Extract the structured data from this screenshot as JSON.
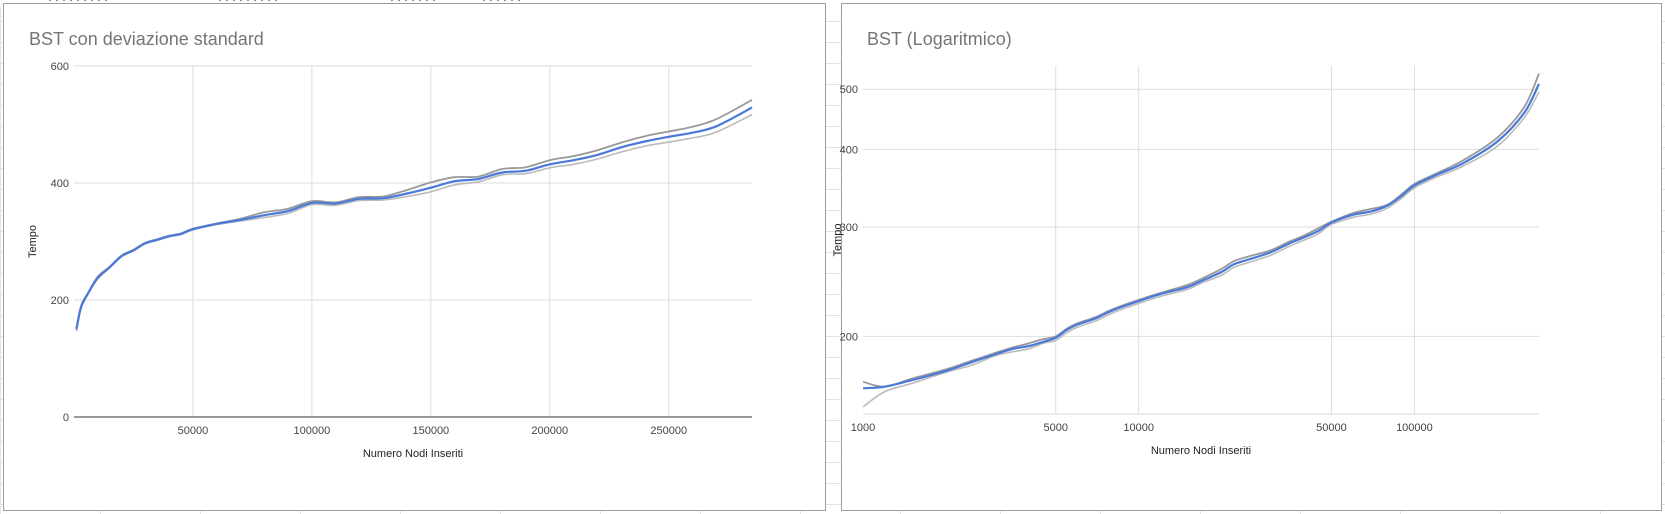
{
  "chart_data": [
    {
      "type": "line",
      "title": "BST con deviazione standard",
      "xlabel": "Numero Nodi Inseriti",
      "ylabel": "Tempo",
      "xlim": [
        0,
        285000
      ],
      "ylim": [
        0,
        600
      ],
      "x_ticks": [
        50000,
        100000,
        150000,
        200000,
        250000
      ],
      "y_ticks": [
        0,
        200,
        400,
        600
      ],
      "log_scale": false,
      "grid": true,
      "legend": "none",
      "colors": {
        "mean": "#4a79d9",
        "upper": "#999999",
        "lower": "#bbbbbb"
      },
      "series": [
        {
          "x": [
            1000,
            3000,
            6000,
            10000,
            15000,
            20000,
            25000,
            30000,
            35000,
            40000,
            45000,
            50000,
            60000,
            70000,
            80000,
            90000,
            100000,
            110000,
            120000,
            130000,
            140000,
            150000,
            160000,
            170000,
            180000,
            190000,
            200000,
            210000,
            220000,
            230000,
            240000,
            250000,
            260000,
            270000,
            285000
          ],
          "values": [
            150,
            188,
            212,
            238,
            256,
            275,
            285,
            297,
            303,
            309,
            313,
            321,
            330,
            337,
            345,
            352,
            366,
            365,
            373,
            374,
            382,
            392,
            403,
            407,
            418,
            421,
            432,
            439,
            448,
            461,
            471,
            479,
            486,
            497,
            529
          ]
        },
        {
          "x": [
            1000,
            3000,
            6000,
            10000,
            15000,
            20000,
            25000,
            30000,
            35000,
            40000,
            45000,
            50000,
            60000,
            70000,
            80000,
            90000,
            100000,
            110000,
            120000,
            130000,
            140000,
            150000,
            160000,
            170000,
            180000,
            190000,
            200000,
            210000,
            220000,
            230000,
            240000,
            250000,
            260000,
            270000,
            285000
          ],
          "values": [
            152,
            190,
            213,
            240,
            257,
            276,
            286,
            298,
            304,
            310,
            314,
            322,
            331,
            339,
            350,
            356,
            369,
            367,
            376,
            377,
            388,
            401,
            410,
            411,
            424,
            427,
            439,
            446,
            456,
            469,
            480,
            488,
            496,
            509,
            542
          ]
        },
        {
          "x": [
            1000,
            3000,
            6000,
            10000,
            15000,
            20000,
            25000,
            30000,
            35000,
            40000,
            45000,
            50000,
            60000,
            70000,
            80000,
            90000,
            100000,
            110000,
            120000,
            130000,
            140000,
            150000,
            160000,
            170000,
            180000,
            190000,
            200000,
            210000,
            220000,
            230000,
            240000,
            250000,
            260000,
            270000,
            285000
          ],
          "values": [
            147,
            186,
            211,
            236,
            255,
            274,
            284,
            296,
            302,
            308,
            312,
            320,
            329,
            335,
            341,
            348,
            363,
            362,
            370,
            371,
            377,
            385,
            397,
            402,
            414,
            416,
            426,
            432,
            441,
            453,
            463,
            470,
            477,
            487,
            517
          ]
        }
      ]
    },
    {
      "type": "line",
      "title": "BST (Logaritmico)",
      "xlabel": "Numero Nodi Inseriti",
      "ylabel": "Tempo",
      "xlim": [
        1000,
        283000
      ],
      "ylim": [
        150,
        545
      ],
      "x_ticks": [
        1000,
        5000,
        10000,
        50000,
        100000
      ],
      "y_ticks": [
        200,
        300,
        400,
        500
      ],
      "log_scale": true,
      "grid": true,
      "legend": "none",
      "colors": {
        "mean": "#4a79d9",
        "upper": "#999999",
        "lower": "#bbbbbb"
      },
      "series": [
        {
          "x": [
            1000,
            1200,
            1500,
            2000,
            2500,
            3000,
            3500,
            4000,
            4500,
            5000,
            5500,
            6000,
            7000,
            8000,
            10000,
            12000,
            15000,
            17000,
            20000,
            22000,
            25000,
            30000,
            35000,
            40000,
            45000,
            50000,
            60000,
            70000,
            80000,
            90000,
            100000,
            120000,
            150000,
            200000,
            250000,
            283000
          ],
          "values": [
            165,
            166,
            170,
            176,
            182,
            187,
            191,
            193,
            196,
            199,
            205,
            209,
            214,
            220,
            228,
            234,
            240,
            246,
            254,
            261,
            266,
            273,
            282,
            289,
            296,
            305,
            314,
            318,
            325,
            337,
            350,
            364,
            380,
            412,
            458,
            510
          ]
        },
        {
          "x": [
            1000,
            1200,
            1500,
            2000,
            2500,
            3000,
            3500,
            4000,
            4500,
            5000,
            5500,
            6000,
            7000,
            8000,
            10000,
            12000,
            15000,
            17000,
            20000,
            22000,
            25000,
            30000,
            35000,
            40000,
            45000,
            50000,
            60000,
            70000,
            80000,
            90000,
            100000,
            120000,
            150000,
            200000,
            250000,
            283000
          ],
          "values": [
            169,
            166,
            171,
            177,
            183,
            188,
            192,
            195,
            198,
            200,
            206,
            210,
            215,
            221,
            229,
            235,
            242,
            248,
            257,
            264,
            269,
            275,
            284,
            291,
            299,
            306,
            316,
            321,
            326,
            339,
            352,
            366,
            384,
            418,
            468,
            530
          ]
        },
        {
          "x": [
            1000,
            1200,
            1500,
            2000,
            2500,
            3000,
            3500,
            4000,
            4500,
            5000,
            5500,
            6000,
            7000,
            8000,
            10000,
            12000,
            15000,
            17000,
            20000,
            22000,
            25000,
            30000,
            35000,
            40000,
            45000,
            50000,
            60000,
            70000,
            80000,
            90000,
            100000,
            120000,
            150000,
            200000,
            250000,
            283000
          ],
          "values": [
            154,
            163,
            168,
            175,
            180,
            186,
            189,
            191,
            195,
            197,
            203,
            207,
            212,
            218,
            226,
            232,
            238,
            244,
            251,
            258,
            263,
            270,
            279,
            286,
            293,
            303,
            311,
            315,
            322,
            334,
            347,
            361,
            376,
            405,
            450,
            495
          ]
        }
      ]
    }
  ]
}
